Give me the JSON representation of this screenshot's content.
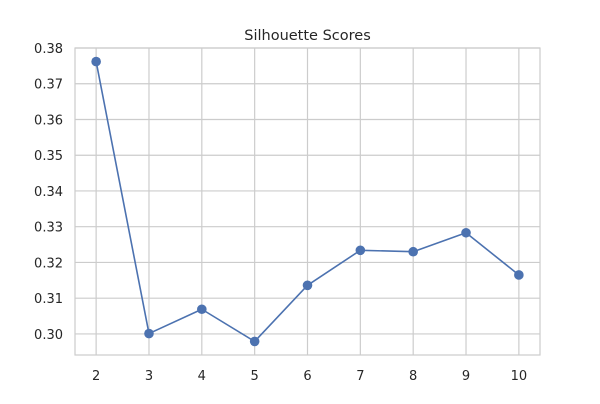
{
  "chart_data": {
    "type": "line",
    "title": "Silhouette Scores",
    "xlabel": "",
    "ylabel": "",
    "x": [
      2,
      3,
      4,
      5,
      6,
      7,
      8,
      9,
      10
    ],
    "series": [
      {
        "values": [
          0.3762,
          0.3001,
          0.3069,
          0.2979,
          0.3136,
          0.3234,
          0.323,
          0.3283,
          0.3165
        ],
        "color": "#4c72b0"
      }
    ],
    "xticks": [
      "2",
      "3",
      "4",
      "5",
      "6",
      "7",
      "8",
      "9",
      "10"
    ],
    "yticks": [
      "0.30",
      "0.31",
      "0.32",
      "0.33",
      "0.34",
      "0.35",
      "0.36",
      "0.37",
      "0.38"
    ],
    "xlim": [
      1.6,
      10.4
    ],
    "ylim": [
      0.2941,
      0.38
    ],
    "grid": true,
    "legend": "none",
    "colors": {
      "grid": "#cccccc",
      "axes_edge": "#cccccc",
      "text": "#262626"
    }
  }
}
